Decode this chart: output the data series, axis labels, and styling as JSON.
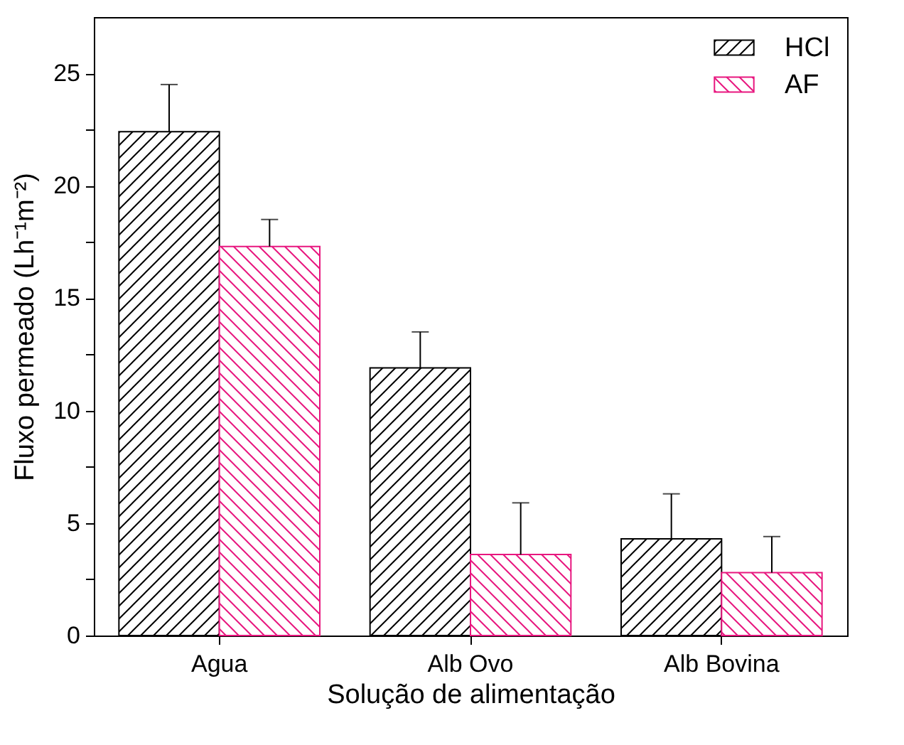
{
  "chart_data": {
    "type": "bar",
    "xlabel": "Solução de alimentação",
    "ylabel": "Fluxo permeado (Lh⁻¹m⁻²)",
    "categories": [
      "Agua",
      "Alb Ovo",
      "Alb Bovina"
    ],
    "series": [
      {
        "name": "HCl",
        "color": "#000000",
        "values": [
          22.4,
          11.9,
          4.3
        ],
        "errors": [
          [
            22.4,
            24.5
          ],
          [
            11.9,
            13.5
          ],
          [
            4.3,
            6.3
          ]
        ]
      },
      {
        "name": "AF",
        "color": "#e8177f",
        "values": [
          17.3,
          3.6,
          2.8
        ],
        "errors": [
          [
            17.3,
            18.5
          ],
          [
            3.6,
            5.9
          ],
          [
            2.8,
            4.4
          ]
        ]
      }
    ],
    "ylim": [
      0,
      27.5
    ],
    "yticks": [
      0,
      {
        "value": 2.5,
        "label": null
      },
      5,
      {
        "value": 7.5,
        "label": null
      },
      10,
      {
        "value": 12.5,
        "label": null
      },
      15,
      {
        "value": 17.5,
        "label": null
      },
      20,
      {
        "value": 22.5,
        "label": null
      },
      25
    ],
    "grid": false,
    "legend": "top right"
  }
}
